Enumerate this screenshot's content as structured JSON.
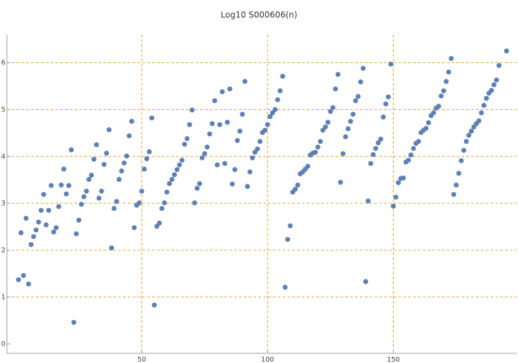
{
  "chart_data": {
    "type": "scatter",
    "title": "Log10 S000606(n)",
    "color": "#5e81b5",
    "x": [
      1,
      2,
      3,
      4,
      5,
      6,
      7,
      8,
      9,
      10,
      11,
      12,
      13,
      14,
      15,
      16,
      17,
      18,
      19,
      20,
      21,
      22,
      23,
      24,
      25,
      26,
      27,
      28,
      29,
      30,
      31,
      32,
      33,
      34,
      35,
      36,
      37,
      38,
      39,
      40,
      41,
      42,
      43,
      44,
      45,
      46,
      47,
      48,
      49,
      50,
      51,
      52,
      53,
      54,
      55,
      56,
      57,
      58,
      59,
      60,
      61,
      62,
      63,
      64,
      65,
      66,
      67,
      68,
      69,
      70,
      71,
      72,
      73,
      74,
      75,
      76,
      77,
      78,
      79,
      80,
      81,
      82,
      83,
      84,
      85,
      86,
      87,
      88,
      89,
      90,
      91,
      92,
      93,
      94,
      95,
      96,
      97,
      98,
      99,
      100,
      101,
      102,
      103,
      104,
      105,
      106,
      107,
      108,
      109,
      110,
      111,
      112,
      113,
      114,
      115,
      116,
      117,
      118,
      119,
      120,
      121,
      122,
      123,
      124,
      125,
      126,
      127,
      128,
      129,
      130,
      131,
      132,
      133,
      134,
      135,
      136,
      137,
      138,
      139,
      140,
      141,
      142,
      143,
      144,
      145,
      146,
      147,
      148,
      149,
      150,
      151,
      152,
      153,
      154,
      155,
      156,
      157,
      158,
      159,
      160,
      161,
      162,
      163,
      164,
      165,
      166,
      167,
      168,
      169,
      170,
      171,
      172,
      173,
      174,
      175,
      176,
      177,
      178,
      179,
      180,
      181,
      182,
      183,
      184,
      185,
      186,
      187,
      188,
      189,
      190,
      191,
      192,
      195
    ],
    "values": [
      1.37,
      2.37,
      1.46,
      2.68,
      1.28,
      2.12,
      2.29,
      2.43,
      2.6,
      2.85,
      3.19,
      2.54,
      2.85,
      3.38,
      2.39,
      2.48,
      2.93,
      3.39,
      3.73,
      3.2,
      3.38,
      4.14,
      0.46,
      2.35,
      2.64,
      2.98,
      3.14,
      3.26,
      3.51,
      3.6,
      3.94,
      4.25,
      3.11,
      3.26,
      3.83,
      4.07,
      4.57,
      2.05,
      2.89,
      3.04,
      3.51,
      3.69,
      3.86,
      4.01,
      4.44,
      4.75,
      2.48,
      2.96,
      3.01,
      3.26,
      3.73,
      3.95,
      4.1,
      4.82,
      0.83,
      2.51,
      2.58,
      2.89,
      3.01,
      3.24,
      3.42,
      3.51,
      3.61,
      3.72,
      3.82,
      3.92,
      4.26,
      4.38,
      4.68,
      4.99,
      3.01,
      3.32,
      3.42,
      3.97,
      4.06,
      4.2,
      4.48,
      4.7,
      5.19,
      3.82,
      4.68,
      5.38,
      3.85,
      4.73,
      5.44,
      3.41,
      3.72,
      4.34,
      4.54,
      4.9,
      5.6,
      3.36,
      3.67,
      3.97,
      4.09,
      4.16,
      4.32,
      4.51,
      4.56,
      4.68,
      4.85,
      4.93,
      5.0,
      5.21,
      5.4,
      5.71,
      1.21,
      2.23,
      2.52,
      3.24,
      3.3,
      3.39,
      3.63,
      3.67,
      3.73,
      3.79,
      4.03,
      4.07,
      4.09,
      4.2,
      4.32,
      4.56,
      4.63,
      4.73,
      4.96,
      5.04,
      5.44,
      5.75,
      3.45,
      4.06,
      4.42,
      4.59,
      4.75,
      4.9,
      5.19,
      5.28,
      5.59,
      5.88,
      1.33,
      3.05,
      3.85,
      4.04,
      4.17,
      4.29,
      4.37,
      4.84,
      5.12,
      5.27,
      5.97,
      2.94,
      3.13,
      3.44,
      3.53,
      3.54,
      3.88,
      3.92,
      4.03,
      4.17,
      4.28,
      4.32,
      4.51,
      4.56,
      4.6,
      4.72,
      4.87,
      4.93,
      5.03,
      5.07,
      5.29,
      5.4,
      5.6,
      5.8,
      6.09,
      3.19,
      3.39,
      3.64,
      3.91,
      4.13,
      4.32,
      4.45,
      4.54,
      4.63,
      4.7,
      4.76,
      4.93,
      5.09,
      5.24,
      5.35,
      5.41,
      5.53,
      5.63,
      5.94,
      6.25
    ],
    "xlim": [
      -3.6,
      199
    ],
    "ylim": [
      -0.2,
      6.6
    ],
    "xticks": [
      50,
      100,
      150
    ],
    "yticks": [
      0,
      1,
      2,
      3,
      4,
      5,
      6
    ],
    "xgrid": [
      50,
      100,
      150
    ],
    "ygrid": [
      1,
      2,
      3,
      4,
      5,
      6
    ],
    "grid_color": "#e0a030"
  }
}
